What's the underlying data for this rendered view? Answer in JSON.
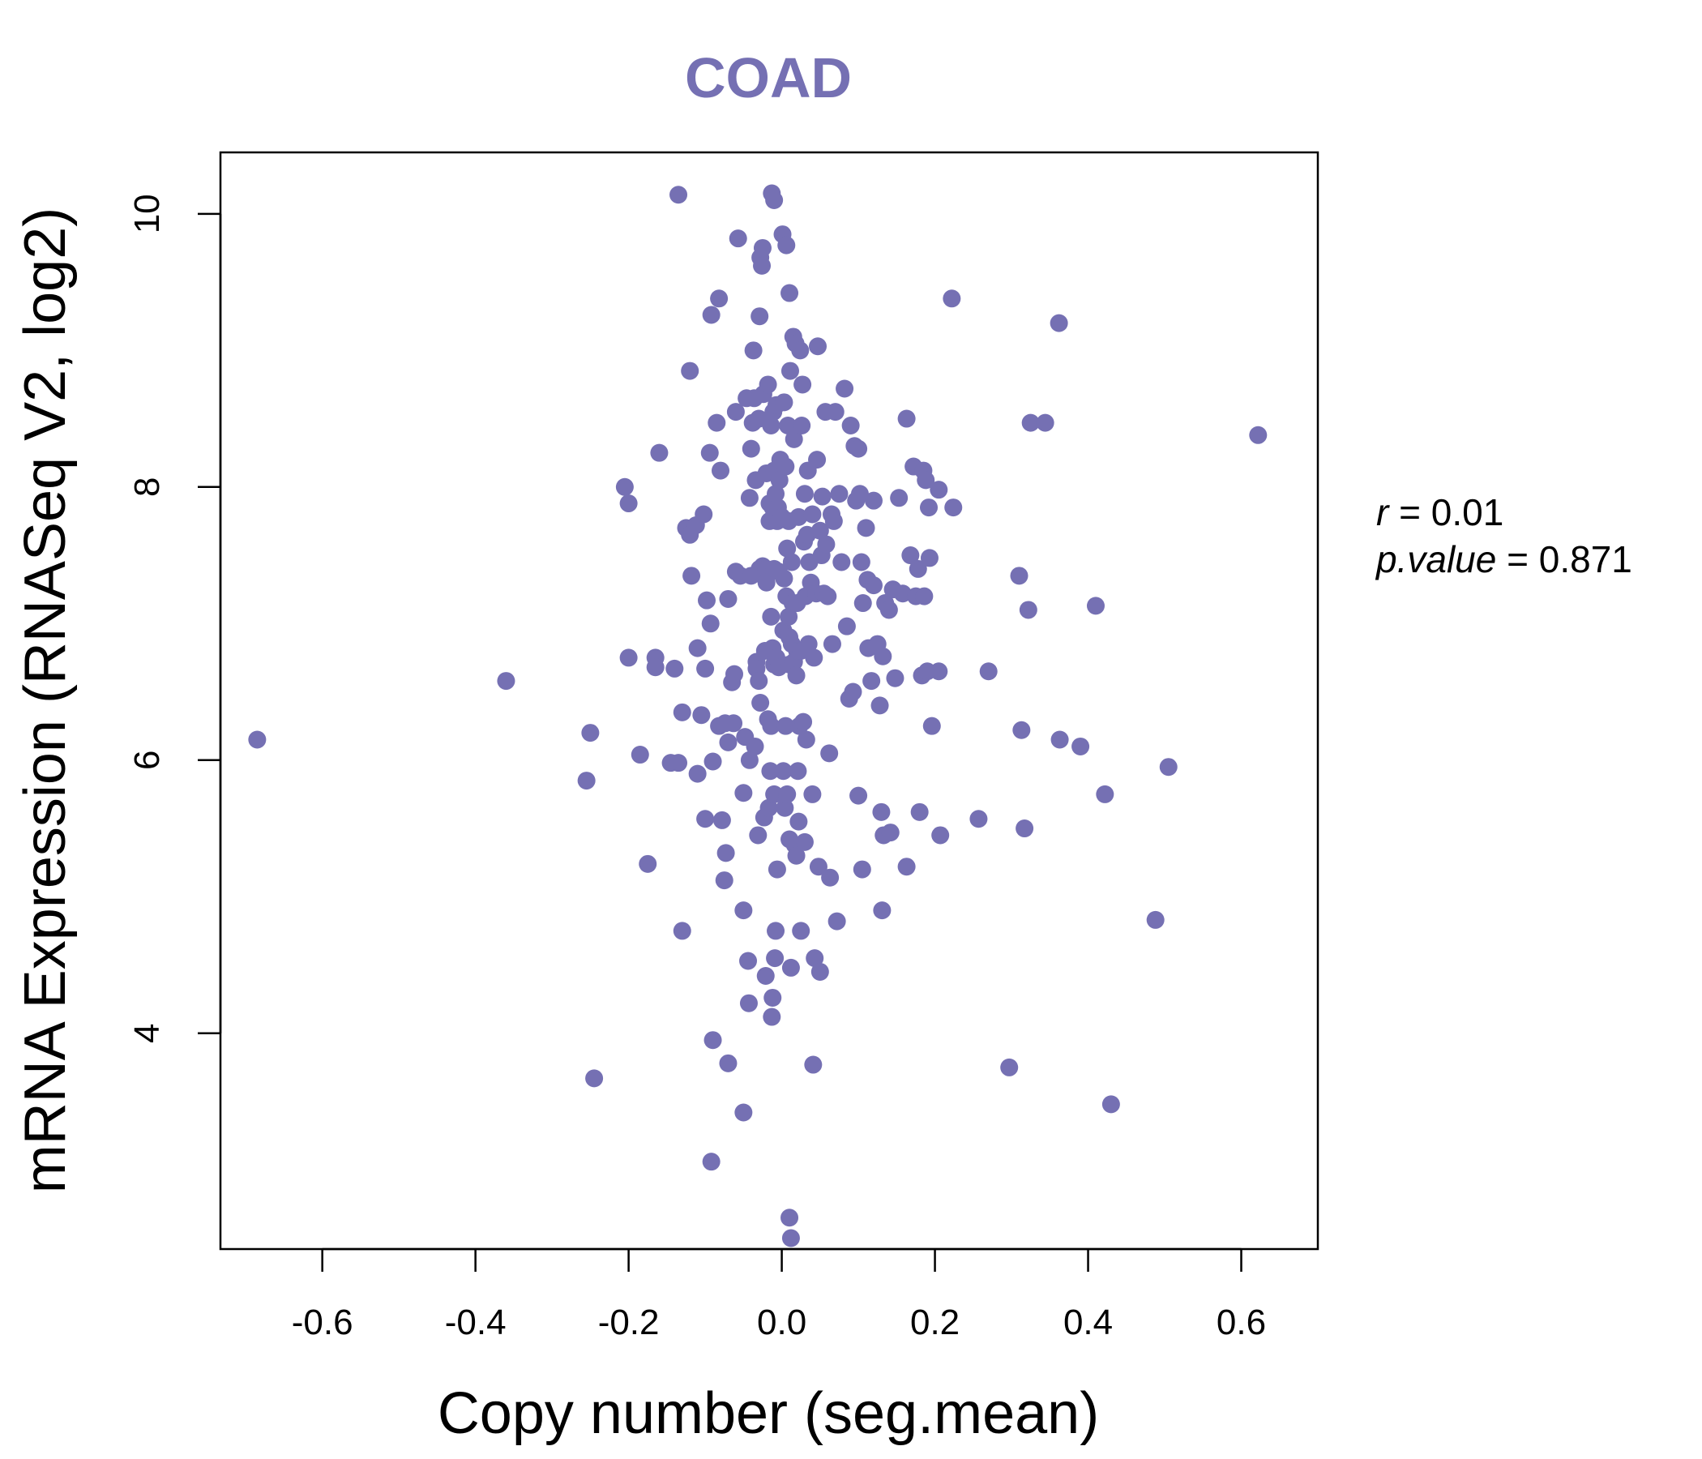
{
  "chart_data": {
    "type": "scatter",
    "title": "COAD",
    "xlabel": "Copy number (seg.mean)",
    "ylabel": "mRNA Expression (RNASeq V2, log2)",
    "xlim": [
      -0.733,
      0.7
    ],
    "ylim": [
      2.42,
      10.45
    ],
    "x_ticks": [
      -0.6,
      -0.4,
      -0.2,
      0.0,
      0.2,
      0.4,
      0.6
    ],
    "x_tick_labels": [
      "-0.6",
      "-0.4",
      "-0.2",
      "0.0",
      "0.2",
      "0.4",
      "0.6"
    ],
    "y_ticks": [
      4,
      6,
      8,
      10
    ],
    "y_tick_labels": [
      "4",
      "6",
      "8",
      "10"
    ],
    "grid": false,
    "point_color": "#7570b3",
    "stats": {
      "r_label": "r",
      "r_value": "0.01",
      "p_label": "p.value",
      "p_value": "0.871"
    },
    "points": [
      [
        -0.685,
        6.15
      ],
      [
        -0.36,
        6.58
      ],
      [
        -0.255,
        5.85
      ],
      [
        -0.25,
        6.2
      ],
      [
        -0.245,
        3.67
      ],
      [
        -0.205,
        8.0
      ],
      [
        -0.2,
        7.88
      ],
      [
        -0.2,
        6.75
      ],
      [
        -0.185,
        6.04
      ],
      [
        -0.175,
        5.24
      ],
      [
        -0.165,
        6.75
      ],
      [
        -0.165,
        6.68
      ],
      [
        -0.16,
        8.25
      ],
      [
        -0.145,
        5.98
      ],
      [
        -0.14,
        6.67
      ],
      [
        -0.135,
        10.14
      ],
      [
        -0.135,
        5.98
      ],
      [
        -0.13,
        6.35
      ],
      [
        -0.13,
        4.75
      ],
      [
        -0.125,
        7.7
      ],
      [
        -0.12,
        7.65
      ],
      [
        -0.12,
        8.85
      ],
      [
        -0.118,
        7.35
      ],
      [
        -0.112,
        7.72
      ],
      [
        -0.11,
        6.82
      ],
      [
        -0.11,
        5.9
      ],
      [
        -0.105,
        6.33
      ],
      [
        -0.102,
        7.8
      ],
      [
        -0.1,
        6.67
      ],
      [
        -0.1,
        5.57
      ],
      [
        -0.098,
        7.17
      ],
      [
        -0.094,
        8.25
      ],
      [
        -0.093,
        7.0
      ],
      [
        -0.092,
        9.26
      ],
      [
        -0.09,
        5.99
      ],
      [
        -0.09,
        3.95
      ],
      [
        -0.092,
        3.06
      ],
      [
        -0.085,
        8.47
      ],
      [
        -0.082,
        9.38
      ],
      [
        -0.082,
        6.25
      ],
      [
        -0.08,
        8.12
      ],
      [
        -0.078,
        5.56
      ],
      [
        -0.075,
        5.12
      ],
      [
        -0.074,
        6.27
      ],
      [
        -0.073,
        5.32
      ],
      [
        -0.07,
        7.18
      ],
      [
        -0.07,
        6.13
      ],
      [
        -0.07,
        3.78
      ],
      [
        -0.065,
        6.57
      ],
      [
        -0.063,
        6.27
      ],
      [
        -0.062,
        6.63
      ],
      [
        -0.06,
        8.55
      ],
      [
        -0.06,
        7.38
      ],
      [
        -0.057,
        9.82
      ],
      [
        -0.054,
        7.35
      ],
      [
        -0.05,
        5.76
      ],
      [
        -0.05,
        4.9
      ],
      [
        -0.05,
        3.42
      ],
      [
        -0.048,
        6.17
      ],
      [
        -0.046,
        8.65
      ],
      [
        -0.044,
        4.53
      ],
      [
        -0.043,
        4.22
      ],
      [
        -0.042,
        7.92
      ],
      [
        -0.042,
        6.0
      ],
      [
        -0.04,
        8.28
      ],
      [
        -0.04,
        7.35
      ],
      [
        -0.038,
        8.47
      ],
      [
        -0.037,
        9.0
      ],
      [
        -0.036,
        8.65
      ],
      [
        -0.035,
        6.1
      ],
      [
        -0.034,
        8.05
      ],
      [
        -0.033,
        6.72
      ],
      [
        -0.033,
        6.67
      ],
      [
        -0.031,
        5.45
      ],
      [
        -0.03,
        8.5
      ],
      [
        -0.03,
        6.58
      ],
      [
        -0.029,
        7.4
      ],
      [
        -0.029,
        9.25
      ],
      [
        -0.028,
        6.42
      ],
      [
        -0.028,
        9.68
      ],
      [
        -0.026,
        9.62
      ],
      [
        -0.025,
        9.75
      ],
      [
        -0.025,
        7.42
      ],
      [
        -0.024,
        8.68
      ],
      [
        -0.024,
        7.35
      ],
      [
        -0.023,
        5.58
      ],
      [
        -0.022,
        6.8
      ],
      [
        -0.021,
        4.42
      ],
      [
        -0.02,
        8.1
      ],
      [
        -0.02,
        7.4
      ],
      [
        -0.02,
        7.3
      ],
      [
        -0.018,
        8.75
      ],
      [
        -0.018,
        6.3
      ],
      [
        -0.017,
        5.65
      ],
      [
        -0.016,
        7.75
      ],
      [
        -0.016,
        7.88
      ],
      [
        -0.015,
        5.92
      ],
      [
        -0.014,
        8.45
      ],
      [
        -0.014,
        7.05
      ],
      [
        -0.014,
        6.25
      ],
      [
        -0.013,
        10.15
      ],
      [
        -0.013,
        4.12
      ],
      [
        -0.012,
        7.85
      ],
      [
        -0.012,
        6.82
      ],
      [
        -0.012,
        4.26
      ],
      [
        -0.011,
        7.78
      ],
      [
        -0.011,
        8.55
      ],
      [
        -0.01,
        10.1
      ],
      [
        -0.01,
        8.12
      ],
      [
        -0.01,
        7.4
      ],
      [
        -0.01,
        6.7
      ],
      [
        -0.01,
        5.75
      ],
      [
        -0.009,
        4.55
      ],
      [
        -0.008,
        7.95
      ],
      [
        -0.008,
        4.75
      ],
      [
        -0.007,
        8.6
      ],
      [
        -0.007,
        6.75
      ],
      [
        -0.006,
        7.75
      ],
      [
        -0.006,
        5.2
      ],
      [
        -0.005,
        7.85
      ],
      [
        -0.004,
        7.38
      ],
      [
        -0.004,
        6.68
      ],
      [
        -0.003,
        8.05
      ],
      [
        -0.002,
        8.2
      ],
      [
        0.0,
        7.78
      ],
      [
        0.001,
        9.85
      ],
      [
        0.002,
        6.95
      ],
      [
        0.002,
        5.92
      ],
      [
        0.003,
        8.62
      ],
      [
        0.003,
        7.33
      ],
      [
        0.004,
        5.65
      ],
      [
        0.005,
        8.15
      ],
      [
        0.005,
        6.25
      ],
      [
        0.006,
        9.77
      ],
      [
        0.006,
        7.2
      ],
      [
        0.007,
        7.55
      ],
      [
        0.007,
        5.75
      ],
      [
        0.008,
        8.45
      ],
      [
        0.009,
        7.75
      ],
      [
        0.009,
        7.05
      ],
      [
        0.01,
        9.42
      ],
      [
        0.01,
        6.9
      ],
      [
        0.01,
        6.7
      ],
      [
        0.01,
        5.42
      ],
      [
        0.01,
        2.65
      ],
      [
        0.011,
        8.85
      ],
      [
        0.012,
        2.5
      ],
      [
        0.012,
        4.48
      ],
      [
        0.013,
        7.45
      ],
      [
        0.013,
        6.85
      ],
      [
        0.014,
        7.15
      ],
      [
        0.015,
        9.1
      ],
      [
        0.016,
        8.35
      ],
      [
        0.016,
        6.72
      ],
      [
        0.017,
        5.38
      ],
      [
        0.018,
        9.05
      ],
      [
        0.019,
        6.62
      ],
      [
        0.019,
        5.3
      ],
      [
        0.02,
        7.15
      ],
      [
        0.02,
        6.8
      ],
      [
        0.021,
        5.92
      ],
      [
        0.022,
        7.78
      ],
      [
        0.022,
        5.55
      ],
      [
        0.023,
        6.25
      ],
      [
        0.024,
        9.0
      ],
      [
        0.025,
        4.75
      ],
      [
        0.025,
        6.8
      ],
      [
        0.026,
        8.45
      ],
      [
        0.027,
        8.75
      ],
      [
        0.028,
        6.28
      ],
      [
        0.029,
        7.6
      ],
      [
        0.03,
        7.95
      ],
      [
        0.03,
        5.4
      ],
      [
        0.031,
        7.2
      ],
      [
        0.032,
        6.15
      ],
      [
        0.033,
        7.65
      ],
      [
        0.034,
        8.12
      ],
      [
        0.035,
        6.85
      ],
      [
        0.036,
        7.45
      ],
      [
        0.038,
        7.3
      ],
      [
        0.04,
        7.8
      ],
      [
        0.04,
        5.75
      ],
      [
        0.041,
        3.77
      ],
      [
        0.042,
        6.75
      ],
      [
        0.043,
        4.55
      ],
      [
        0.045,
        7.22
      ],
      [
        0.046,
        8.2
      ],
      [
        0.047,
        9.03
      ],
      [
        0.048,
        5.22
      ],
      [
        0.05,
        7.68
      ],
      [
        0.05,
        4.45
      ],
      [
        0.052,
        7.5
      ],
      [
        0.053,
        7.93
      ],
      [
        0.055,
        7.22
      ],
      [
        0.057,
        8.55
      ],
      [
        0.058,
        7.58
      ],
      [
        0.06,
        7.2
      ],
      [
        0.062,
        6.05
      ],
      [
        0.063,
        5.14
      ],
      [
        0.065,
        7.8
      ],
      [
        0.066,
        6.85
      ],
      [
        0.068,
        7.75
      ],
      [
        0.07,
        8.55
      ],
      [
        0.072,
        4.82
      ],
      [
        0.075,
        7.95
      ],
      [
        0.078,
        7.45
      ],
      [
        0.082,
        8.72
      ],
      [
        0.085,
        6.98
      ],
      [
        0.088,
        6.45
      ],
      [
        0.09,
        8.45
      ],
      [
        0.093,
        6.5
      ],
      [
        0.095,
        8.3
      ],
      [
        0.097,
        7.9
      ],
      [
        0.1,
        5.74
      ],
      [
        0.1,
        8.28
      ],
      [
        0.102,
        7.95
      ],
      [
        0.104,
        7.45
      ],
      [
        0.105,
        5.2
      ],
      [
        0.106,
        7.15
      ],
      [
        0.11,
        7.7
      ],
      [
        0.112,
        7.32
      ],
      [
        0.113,
        6.82
      ],
      [
        0.117,
        6.58
      ],
      [
        0.12,
        7.28
      ],
      [
        0.12,
        7.9
      ],
      [
        0.125,
        6.85
      ],
      [
        0.128,
        6.4
      ],
      [
        0.13,
        5.62
      ],
      [
        0.131,
        4.9
      ],
      [
        0.132,
        6.76
      ],
      [
        0.133,
        5.45
      ],
      [
        0.135,
        7.15
      ],
      [
        0.14,
        7.1
      ],
      [
        0.142,
        5.47
      ],
      [
        0.145,
        7.25
      ],
      [
        0.148,
        6.6
      ],
      [
        0.153,
        7.92
      ],
      [
        0.158,
        7.22
      ],
      [
        0.163,
        8.5
      ],
      [
        0.163,
        5.22
      ],
      [
        0.168,
        7.5
      ],
      [
        0.172,
        8.15
      ],
      [
        0.175,
        7.2
      ],
      [
        0.178,
        7.4
      ],
      [
        0.18,
        5.62
      ],
      [
        0.183,
        6.62
      ],
      [
        0.185,
        8.12
      ],
      [
        0.186,
        7.2
      ],
      [
        0.188,
        8.05
      ],
      [
        0.19,
        6.65
      ],
      [
        0.192,
        7.85
      ],
      [
        0.193,
        7.48
      ],
      [
        0.196,
        6.25
      ],
      [
        0.205,
        7.98
      ],
      [
        0.205,
        6.65
      ],
      [
        0.207,
        5.45
      ],
      [
        0.222,
        9.38
      ],
      [
        0.224,
        7.85
      ],
      [
        0.257,
        5.57
      ],
      [
        0.27,
        6.65
      ],
      [
        0.297,
        3.75
      ],
      [
        0.31,
        7.35
      ],
      [
        0.313,
        6.22
      ],
      [
        0.317,
        5.5
      ],
      [
        0.322,
        7.1
      ],
      [
        0.325,
        8.47
      ],
      [
        0.344,
        8.47
      ],
      [
        0.362,
        9.2
      ],
      [
        0.363,
        6.15
      ],
      [
        0.39,
        6.1
      ],
      [
        0.41,
        7.13
      ],
      [
        0.422,
        5.75
      ],
      [
        0.43,
        3.48
      ],
      [
        0.488,
        4.83
      ],
      [
        0.505,
        5.95
      ],
      [
        0.622,
        8.38
      ]
    ]
  }
}
